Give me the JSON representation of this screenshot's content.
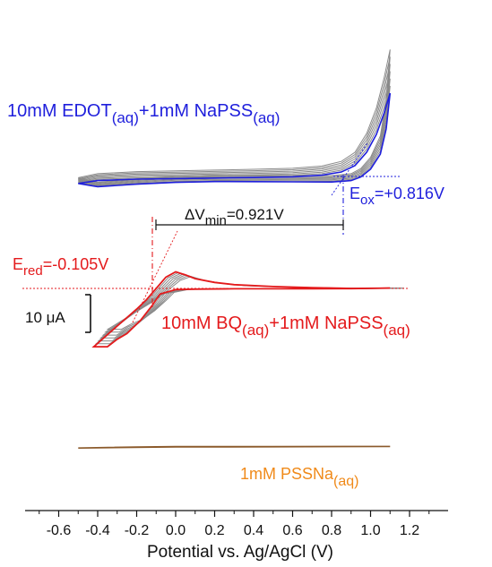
{
  "chart_data": {
    "type": "line",
    "title": "",
    "xlabel": "Potential vs. Ag/AgCl (V)",
    "ylabel": "",
    "xlim": [
      -0.7,
      1.3
    ],
    "x_ticks": [
      "-0.6",
      "-0.4",
      "-0.2",
      "0.0",
      "0.2",
      "0.4",
      "0.6",
      "0.8",
      "1.0",
      "1.2"
    ],
    "x_tick_values": [
      -0.6,
      -0.4,
      -0.2,
      0.0,
      0.2,
      0.4,
      0.6,
      0.8,
      1.0,
      1.2
    ],
    "scale_bar": {
      "label": "10 μA",
      "value_uA": 10
    },
    "colors": {
      "edot": "#1f1fdc",
      "bq": "#e41a1c",
      "pss": "#f08a1a",
      "grey": "#8a8a8a",
      "pss_line": "#8b5a2b"
    },
    "series": [
      {
        "name": "10mM EDOT(aq)+1mM NaPSS(aq)",
        "label_main": "10mM EDOT",
        "label_sub1": "(aq)",
        "label_mid": "+1mM NaPSS",
        "label_sub2": "(aq)",
        "forward": [
          [
            -0.5,
            -1.2
          ],
          [
            -0.4,
            -0.4
          ],
          [
            -0.2,
            0.0
          ],
          [
            0.0,
            0.15
          ],
          [
            0.2,
            0.3
          ],
          [
            0.4,
            0.45
          ],
          [
            0.6,
            0.65
          ],
          [
            0.75,
            1.1
          ],
          [
            0.85,
            2.0
          ],
          [
            0.92,
            3.8
          ],
          [
            0.98,
            7.5
          ],
          [
            1.03,
            12.5
          ],
          [
            1.07,
            18.5
          ],
          [
            1.1,
            24.0
          ]
        ],
        "reverse": [
          [
            1.1,
            24.0
          ],
          [
            1.08,
            14.0
          ],
          [
            1.05,
            7.0
          ],
          [
            1.0,
            2.8
          ],
          [
            0.95,
            0.6
          ],
          [
            0.9,
            -0.4
          ],
          [
            0.8,
            -0.8
          ],
          [
            0.6,
            -0.75
          ],
          [
            0.4,
            -0.7
          ],
          [
            0.2,
            -0.68
          ],
          [
            0.0,
            -0.9
          ],
          [
            -0.2,
            -1.4
          ],
          [
            -0.4,
            -2.1
          ],
          [
            -0.5,
            -1.2
          ]
        ]
      },
      {
        "name": "10mM BQ(aq)+1mM NaPSS(aq)",
        "label_main": "10mM BQ",
        "label_sub1": "(aq)",
        "label_mid": "+1mM NaPSS",
        "label_sub2": "(aq)",
        "forward": [
          [
            -0.42,
            -15.5
          ],
          [
            -0.3,
            -10.0
          ],
          [
            -0.2,
            -5.5
          ],
          [
            -0.15,
            -3.0
          ],
          [
            -0.1,
            0.0
          ],
          [
            -0.05,
            3.0
          ],
          [
            0.0,
            4.4
          ],
          [
            0.05,
            3.6
          ],
          [
            0.1,
            2.6
          ],
          [
            0.2,
            1.6
          ],
          [
            0.3,
            1.0
          ],
          [
            0.5,
            0.5
          ],
          [
            0.7,
            0.2
          ],
          [
            0.9,
            0.0
          ],
          [
            1.1,
            0.1
          ]
        ],
        "reverse": [
          [
            1.1,
            0.1
          ],
          [
            0.9,
            -0.05
          ],
          [
            0.7,
            -0.1
          ],
          [
            0.5,
            -0.1
          ],
          [
            0.3,
            -0.1
          ],
          [
            0.1,
            -0.2
          ],
          [
            0.0,
            -0.3
          ],
          [
            -0.08,
            -1.5
          ],
          [
            -0.12,
            -4.5
          ],
          [
            -0.18,
            -8.5
          ],
          [
            -0.25,
            -12.0
          ],
          [
            -0.3,
            -13.5
          ],
          [
            -0.35,
            -15.5
          ],
          [
            -0.42,
            -15.5
          ]
        ]
      },
      {
        "name": "1mM PSSNa(aq)",
        "label_main": "1mM PSSNa",
        "label_sub1": "(aq)",
        "forward": [
          [
            -0.5,
            -0.3
          ],
          [
            -0.2,
            0.0
          ],
          [
            0.0,
            0.1
          ],
          [
            0.5,
            0.1
          ],
          [
            1.1,
            0.15
          ]
        ],
        "reverse": [
          [
            1.1,
            0.15
          ],
          [
            0.5,
            0.05
          ],
          [
            0.0,
            0.0
          ],
          [
            -0.5,
            -0.3
          ]
        ]
      }
    ],
    "annotations": {
      "e_ox": {
        "label_main": "E",
        "label_sub": "ox",
        "label_rest": "=+0.816V",
        "value": 0.816
      },
      "e_red": {
        "label_main": "E",
        "label_sub": "red",
        "label_rest": "=-0.105V",
        "value": -0.105
      },
      "delta_v": {
        "label_main": "ΔV",
        "label_sub": "min",
        "label_rest": "=0.921V",
        "value": 0.921
      }
    }
  }
}
